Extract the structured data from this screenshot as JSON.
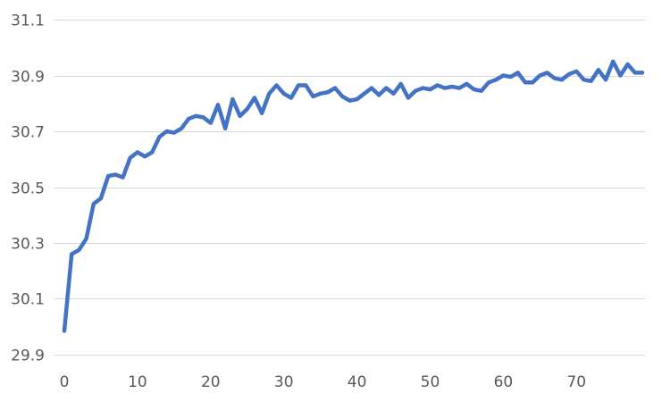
{
  "chart_data": {
    "type": "line",
    "title": "",
    "xlabel": "",
    "ylabel": "",
    "xlim": [
      0,
      79
    ],
    "ylim": [
      29.9,
      31.1
    ],
    "xticks": [
      0,
      10,
      20,
      30,
      40,
      50,
      60,
      70
    ],
    "yticks": [
      29.9,
      30.1,
      30.3,
      30.5,
      30.7,
      30.9,
      31.1
    ],
    "ytick_labels": [
      "29.9",
      "30.1",
      "30.3",
      "30.5",
      "30.7",
      "30.9",
      "31.1"
    ],
    "grid": true,
    "legend": false,
    "series": [
      {
        "color": "#4472c4",
        "x": [
          0,
          1,
          2,
          3,
          4,
          5,
          6,
          7,
          8,
          9,
          10,
          11,
          12,
          13,
          14,
          15,
          16,
          17,
          18,
          19,
          20,
          21,
          22,
          23,
          24,
          25,
          26,
          27,
          28,
          29,
          30,
          31,
          32,
          33,
          34,
          35,
          36,
          37,
          38,
          39,
          40,
          41,
          42,
          43,
          44,
          45,
          46,
          47,
          48,
          49,
          50,
          51,
          52,
          53,
          54,
          55,
          56,
          57,
          58,
          59,
          60,
          61,
          62,
          63,
          64,
          65,
          66,
          67,
          68,
          69,
          70,
          71,
          72,
          73,
          74,
          75,
          76,
          77,
          78,
          79
        ],
        "values": [
          29.985,
          30.26,
          30.275,
          30.315,
          30.44,
          30.46,
          30.54,
          30.545,
          30.535,
          30.605,
          30.625,
          30.61,
          30.625,
          30.68,
          30.7,
          30.695,
          30.71,
          30.745,
          30.755,
          30.75,
          30.73,
          30.795,
          30.71,
          30.815,
          30.755,
          30.78,
          30.82,
          30.765,
          30.835,
          30.865,
          30.835,
          30.82,
          30.865,
          30.865,
          30.825,
          30.835,
          30.84,
          30.855,
          30.825,
          30.81,
          30.815,
          30.835,
          30.855,
          30.83,
          30.855,
          30.835,
          30.87,
          30.82,
          30.845,
          30.855,
          30.85,
          30.865,
          30.855,
          30.86,
          30.855,
          30.87,
          30.85,
          30.845,
          30.875,
          30.885,
          30.9,
          30.895,
          30.91,
          30.875,
          30.875,
          30.9,
          30.91,
          30.89,
          30.885,
          30.905,
          30.915,
          30.885,
          30.88,
          30.92,
          30.885,
          30.95,
          30.9,
          30.94,
          30.91,
          30.91
        ]
      }
    ]
  }
}
